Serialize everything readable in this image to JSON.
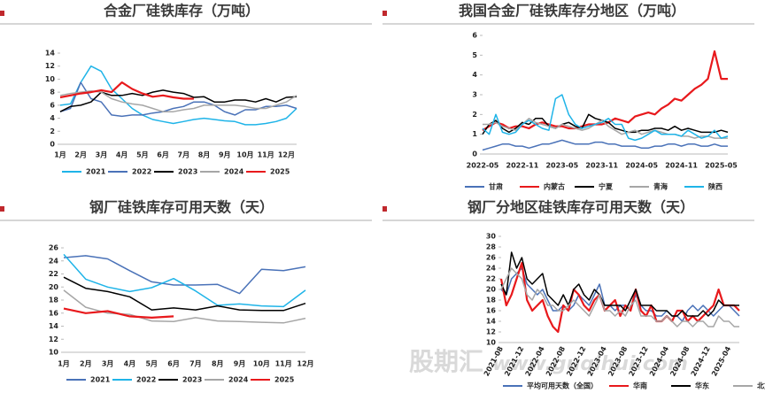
{
  "chart_data": [
    {
      "type": "line",
      "title": "合金厂硅铁库存（万吨）",
      "categories": [
        "1月",
        null,
        "2月",
        null,
        "3月",
        null,
        "4月",
        null,
        "5月",
        null,
        "6月",
        null,
        "7月",
        null,
        "8月",
        null,
        "9月",
        null,
        "10月",
        null,
        "11月",
        null,
        "12月",
        null
      ],
      "ylim": [
        0,
        14
      ],
      "yticks": [
        0,
        2,
        4,
        6,
        8,
        10,
        12,
        14
      ],
      "legend": "bottom",
      "series": [
        {
          "name": "2021",
          "color": "#1fb4e8",
          "values": [
            6,
            6.2,
            9.5,
            12,
            11.2,
            8.5,
            7,
            5.5,
            4.5,
            3.8,
            3.5,
            3.2,
            3.5,
            3.8,
            4,
            3.8,
            3.6,
            3.5,
            3,
            3,
            3.2,
            3.5,
            4,
            5.5
          ]
        },
        {
          "name": "2022",
          "color": "#4a72b8",
          "values": [
            5,
            5.5,
            9.5,
            7,
            6.5,
            4.5,
            4.3,
            4.5,
            4.5,
            4.8,
            5,
            5.5,
            5.8,
            6.5,
            6.5,
            6,
            5,
            4.5,
            5.3,
            5.3,
            5.8,
            5.8,
            6,
            5.5
          ]
        },
        {
          "name": "2023",
          "color": "#000000",
          "values": [
            5,
            5.8,
            6,
            6.5,
            8,
            7.5,
            7.5,
            7.8,
            7.5,
            8,
            8.3,
            8,
            7.8,
            7.2,
            7.3,
            6.5,
            6.5,
            6.8,
            6.8,
            6.5,
            7,
            6.5,
            7.2,
            7.3
          ]
        },
        {
          "name": "2024",
          "color": "#a6a6a6",
          "values": [
            7.5,
            7.8,
            8,
            8.2,
            8,
            7,
            6.5,
            6.2,
            6,
            5.5,
            5,
            5,
            5.3,
            5.5,
            6,
            6,
            6,
            6,
            5.8,
            5.5,
            5.5,
            6,
            6.5,
            7.5
          ]
        },
        {
          "name": "2025",
          "color": "#e8191c",
          "values": [
            7.2,
            7.5,
            7.8,
            8,
            8.3,
            8,
            9.5,
            8.5,
            7.8,
            7.3,
            7.5,
            7.2,
            7,
            7,
            null,
            null,
            null,
            null,
            null,
            null,
            null,
            null,
            null,
            null
          ]
        }
      ]
    },
    {
      "type": "line",
      "title": "我国合金厂硅铁库存分地区（万吨）",
      "categories": [
        "2022-05",
        null,
        null,
        null,
        null,
        null,
        "2022-11",
        null,
        null,
        null,
        null,
        null,
        "2023-05",
        null,
        null,
        null,
        null,
        null,
        "2023-11",
        null,
        null,
        null,
        null,
        null,
        "2024-05",
        null,
        null,
        null,
        null,
        null,
        "2024-11",
        null,
        null,
        null,
        null,
        null,
        "2025-05",
        null
      ],
      "ylim": [
        0,
        6
      ],
      "yticks": [
        0,
        1,
        2,
        3,
        4,
        5,
        6
      ],
      "legend": "bottom",
      "series": [
        {
          "name": "甘肃",
          "color": "#4a72b8",
          "values": [
            0.2,
            0.3,
            0.4,
            0.5,
            0.5,
            0.4,
            0.4,
            0.3,
            0.4,
            0.5,
            0.5,
            0.6,
            0.7,
            0.6,
            0.5,
            0.5,
            0.5,
            0.6,
            0.6,
            0.5,
            0.5,
            0.4,
            0.4,
            0.4,
            0.3,
            0.3,
            0.4,
            0.4,
            0.5,
            0.5,
            0.4,
            0.5,
            0.5,
            0.4,
            0.4,
            0.5,
            0.4,
            0.4
          ]
        },
        {
          "name": "内蒙古",
          "color": "#e8191c",
          "values": [
            1.2,
            1.4,
            1.6,
            1.5,
            1.3,
            1.4,
            1.4,
            1.3,
            1.5,
            1.6,
            1.5,
            1.4,
            1.4,
            1.3,
            1.3,
            1.4,
            1.5,
            1.5,
            1.5,
            1.6,
            1.8,
            1.7,
            1.6,
            1.9,
            2.0,
            2.1,
            2.0,
            2.3,
            2.5,
            2.8,
            2.7,
            3.0,
            3.3,
            3.5,
            3.8,
            5.2,
            3.8,
            3.8
          ]
        },
        {
          "name": "宁夏",
          "color": "#000000",
          "values": [
            1.0,
            1.5,
            1.7,
            1.3,
            1.1,
            1.3,
            1.6,
            1.5,
            1.8,
            1.8,
            1.4,
            1.3,
            1.5,
            1.6,
            1.4,
            1.3,
            2.0,
            1.8,
            1.7,
            1.6,
            1.3,
            1.2,
            1.1,
            1.1,
            1.2,
            1.2,
            1.3,
            1.3,
            1.2,
            1.4,
            1.2,
            1.3,
            1.2,
            1.1,
            1.1,
            1.1,
            1.2,
            1.1
          ]
        },
        {
          "name": "青海",
          "color": "#a6a6a6",
          "values": [
            1.5,
            1.5,
            1.6,
            1.4,
            1.3,
            1.2,
            1.5,
            1.8,
            1.6,
            1.5,
            1.4,
            1.3,
            1.5,
            1.4,
            1.3,
            1.2,
            1.3,
            1.5,
            1.7,
            1.4,
            1.2,
            1.0,
            1.1,
            1.2,
            1.0,
            1.1,
            1.2,
            1.1,
            1.0,
            1.0,
            0.9,
            0.9,
            0.8,
            0.9,
            0.9,
            0.8,
            0.8,
            0.8
          ]
        },
        {
          "name": "陕西",
          "color": "#1fb4e8",
          "values": [
            1.3,
            1.0,
            2.0,
            1.1,
            1.0,
            1.1,
            1.5,
            1.7,
            1.5,
            1.3,
            1.2,
            2.8,
            3.0,
            2.0,
            1.5,
            1.3,
            1.4,
            1.5,
            1.6,
            1.8,
            1.5,
            1.5,
            0.8,
            0.7,
            0.8,
            1.0,
            1.2,
            1.0,
            1.0,
            1.0,
            0.9,
            1.2,
            1.0,
            0.8,
            0.9,
            1.2,
            0.8,
            0.9
          ]
        }
      ]
    },
    {
      "type": "line",
      "title": "钢厂硅铁库存可用天数（天）",
      "categories": [
        "1月",
        "2月",
        "3月",
        "4月",
        "5月",
        "6月",
        "7月",
        "8月",
        "9月",
        "10月",
        "11月",
        "12月"
      ],
      "ylim": [
        10,
        26
      ],
      "yticks": [
        10,
        12,
        14,
        16,
        18,
        20,
        22,
        24,
        26
      ],
      "legend": "bottom",
      "series": [
        {
          "name": "2021",
          "color": "#4a72b8",
          "values": [
            24.5,
            24.8,
            24.3,
            22.5,
            20.8,
            20.3,
            20.3,
            20.4,
            19,
            22.7,
            22.5,
            23.1
          ]
        },
        {
          "name": "2022",
          "color": "#1fb4e8",
          "values": [
            25,
            21.2,
            20,
            19.3,
            19.9,
            21.3,
            19.4,
            17.2,
            17.4,
            17.1,
            17,
            19.5
          ]
        },
        {
          "name": "2023",
          "color": "#000000",
          "values": [
            21.5,
            19.8,
            19.3,
            18.5,
            16.5,
            16.8,
            16.5,
            17.1,
            16.5,
            16.4,
            16.4,
            17.5
          ]
        },
        {
          "name": "2024",
          "color": "#a6a6a6",
          "values": [
            19.5,
            16.9,
            16,
            15.8,
            14.8,
            14.7,
            15.3,
            14.8,
            14.7,
            14.6,
            14.5,
            15.2
          ]
        },
        {
          "name": "2025",
          "color": "#e8191c",
          "values": [
            16.7,
            16,
            16.3,
            15.5,
            15.3,
            15.5,
            null,
            null,
            null,
            null,
            null,
            null
          ]
        }
      ]
    },
    {
      "type": "line",
      "title": "钢厂分地区硅铁库存可用天数（天）",
      "categories": [
        "2021-08",
        null,
        null,
        null,
        "2021-12",
        null,
        null,
        null,
        "2022-04",
        null,
        null,
        null,
        "2022-08",
        null,
        null,
        null,
        "2022-12",
        null,
        null,
        null,
        "2023-04",
        null,
        null,
        null,
        "2023-08",
        null,
        null,
        null,
        "2023-12",
        null,
        null,
        null,
        "2024-04",
        null,
        null,
        null,
        "2024-08",
        null,
        null,
        null,
        "2024-12",
        null,
        null,
        null,
        "2025-04",
        null,
        null
      ],
      "ylim": [
        10,
        30
      ],
      "yticks": [
        10,
        12,
        14,
        16,
        18,
        20,
        22,
        24,
        26,
        28,
        30
      ],
      "legend": "bottom",
      "series": [
        {
          "name": "平均可用天数（全国）",
          "color": "#4a72b8",
          "values": [
            20,
            19,
            22,
            23,
            24,
            21,
            20,
            19,
            20,
            18,
            16,
            16,
            17,
            16,
            17,
            19,
            18,
            17,
            19,
            21,
            17,
            17,
            16,
            17,
            17,
            16,
            19,
            17,
            16,
            16,
            15,
            15,
            16,
            15,
            15,
            14,
            16,
            17,
            16,
            17,
            16,
            15,
            16,
            17,
            17,
            16,
            15
          ]
        },
        {
          "name": "华南",
          "color": "#e8191c",
          "values": [
            22,
            17,
            19,
            22,
            25,
            18,
            16,
            17,
            18,
            15,
            13,
            12,
            17,
            16,
            20,
            19,
            17,
            16,
            18,
            19,
            16,
            17,
            18,
            15,
            17,
            16,
            20,
            16,
            15,
            17,
            14,
            14,
            15,
            14,
            16,
            16,
            14,
            15,
            14,
            15,
            16,
            17,
            20,
            17,
            17,
            17,
            16
          ]
        },
        {
          "name": "华东",
          "color": "#000000",
          "values": [
            21,
            19,
            27,
            24,
            26,
            22,
            21,
            22,
            23,
            19,
            18,
            17,
            19,
            17,
            20,
            21,
            19,
            18,
            20,
            19,
            17,
            17,
            17,
            17,
            16,
            18,
            20,
            17,
            17,
            17,
            16,
            16,
            16,
            15,
            15,
            16,
            15,
            15,
            15,
            16,
            15,
            16,
            18,
            17,
            17,
            17,
            17
          ]
        },
        {
          "name": "北方",
          "color": "#a6a6a6",
          "values": [
            20,
            22,
            24,
            23,
            22,
            19,
            18,
            20,
            19,
            17,
            17,
            16,
            16,
            17,
            18,
            17,
            16,
            15,
            17,
            19,
            16,
            16,
            15,
            16,
            15,
            17,
            18,
            15,
            15,
            15,
            14,
            14,
            15,
            14,
            13,
            14,
            14,
            13,
            14,
            14,
            13,
            13,
            15,
            14,
            14,
            13,
            13
          ]
        }
      ]
    }
  ],
  "watermark": {
    "brand": "股期汇",
    "url": "www.guqihui.com"
  }
}
